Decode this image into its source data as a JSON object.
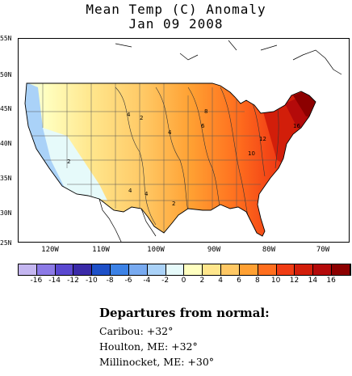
{
  "title": "Mean Temp (C) Anomaly",
  "subtitle": "Jan 09 2008",
  "lat_labels": [
    "55N",
    "50N",
    "45N",
    "40N",
    "35N",
    "30N",
    "25N"
  ],
  "lon_labels": [
    "120W",
    "110W",
    "100W",
    "90W",
    "80W",
    "70W"
  ],
  "contour_labels": [
    "4",
    "2",
    "4",
    "2",
    "8",
    "6",
    "12",
    "10",
    "16",
    "4",
    "4",
    "2"
  ],
  "colorbar": {
    "labels": [
      "-16",
      "-14",
      "-12",
      "-10",
      "-8",
      "-6",
      "-4",
      "-2",
      "0",
      "2",
      "4",
      "6",
      "8",
      "10",
      "12",
      "14",
      "16"
    ],
    "colors": [
      "#c4b6f0",
      "#8c7ae6",
      "#5a48d0",
      "#3a2aa8",
      "#1e50c8",
      "#3c82e6",
      "#78aaf0",
      "#aad2f8",
      "#e6fafa",
      "#ffffc0",
      "#ffe68c",
      "#ffc864",
      "#ffa032",
      "#ff6e1e",
      "#f03c14",
      "#d21e0a",
      "#b40a0a",
      "#8c0000"
    ]
  },
  "notes": {
    "heading": "Departures from normal:",
    "lines": [
      "Caribou: +32°",
      "Houlton, ME: +32°",
      "Millinocket, ME: +30°"
    ]
  },
  "icons": [
    "contour-map"
  ]
}
